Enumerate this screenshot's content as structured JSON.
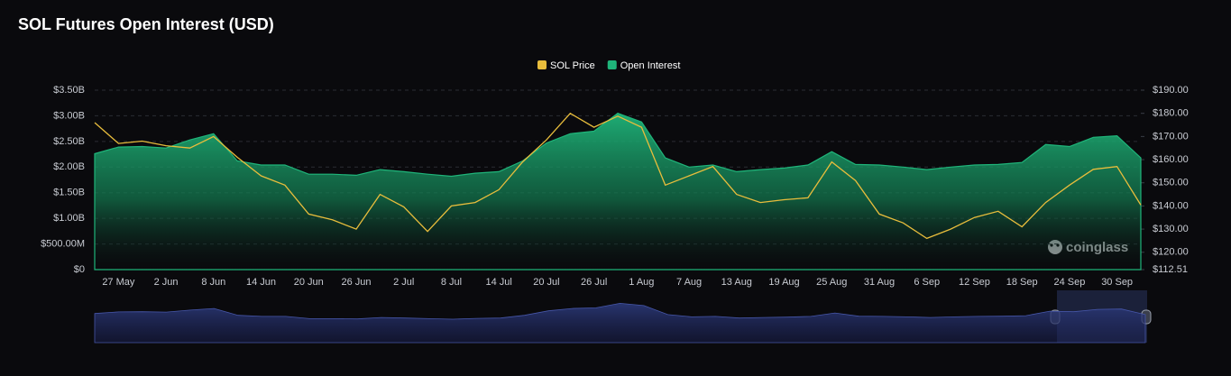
{
  "chart_data": {
    "type": "line",
    "title": "SOL Futures Open Interest (USD)",
    "watermark": "coinglass",
    "categories": [
      null,
      "27 May",
      null,
      "2 Jun",
      null,
      "8 Jun",
      null,
      "14 Jun",
      null,
      "20 Jun",
      null,
      "26 Jun",
      null,
      "2 Jul",
      null,
      "8 Jul",
      null,
      "14 Jul",
      null,
      "20 Jul",
      null,
      "26 Jul",
      null,
      "1 Aug",
      null,
      "7 Aug",
      null,
      "13 Aug",
      null,
      "19 Aug",
      null,
      "25 Aug",
      null,
      "31 Aug",
      null,
      "6 Sep",
      null,
      "12 Sep",
      null,
      "18 Sep",
      null,
      "24 Sep",
      null,
      "30 Sep",
      null
    ],
    "series": [
      {
        "name": "SOL Price",
        "color": "#e8bd3c",
        "axis": "y2",
        "values": [
          176,
          167,
          168,
          166,
          165,
          170,
          161,
          153,
          149,
          136.5,
          134,
          130,
          145,
          139.6,
          129,
          140,
          141.5,
          147,
          159,
          168.5,
          180,
          174,
          178.8,
          174,
          149,
          153,
          157,
          145,
          141.5,
          142.7,
          143.5,
          159,
          151,
          136.5,
          132.7,
          126,
          130,
          135,
          137.7,
          131,
          141.5,
          149,
          155.8,
          157,
          140.4
        ]
      },
      {
        "name": "Open Interest",
        "color": "#1fb57a",
        "values": [
          2260000000,
          2390000000,
          2400000000,
          2370000000,
          2530000000,
          2650000000,
          2120000000,
          2040000000,
          2040000000,
          1860000000,
          1860000000,
          1840000000,
          1950000000,
          1910000000,
          1860000000,
          1820000000,
          1880000000,
          1910000000,
          2120000000,
          2470000000,
          2650000000,
          2700000000,
          3050000000,
          2880000000,
          2180000000,
          2000000000,
          2040000000,
          1910000000,
          1950000000,
          1980000000,
          2040000000,
          2300000000,
          2050000000,
          2040000000,
          2000000000,
          1950000000,
          2000000000,
          2040000000,
          2050000000,
          2090000000,
          2440000000,
          2400000000,
          2580000000,
          2610000000,
          2180000000
        ]
      }
    ],
    "ylim": [
      0,
      3500000000
    ],
    "yticks": [
      {
        "value": 0,
        "label": "$0"
      },
      {
        "value": 500000000,
        "label": "$500.00M"
      },
      {
        "value": 1000000000,
        "label": "$1.00B"
      },
      {
        "value": 1500000000,
        "label": "$1.50B"
      },
      {
        "value": 2000000000,
        "label": "$2.00B"
      },
      {
        "value": 2500000000,
        "label": "$2.50B"
      },
      {
        "value": 3000000000,
        "label": "$3.00B"
      },
      {
        "value": 3500000000,
        "label": "$3.50B"
      }
    ],
    "y2lim": [
      112.51,
      190
    ],
    "y2ticks": [
      {
        "value": 112.51,
        "label": "$112.51"
      },
      {
        "value": 120,
        "label": "$120.00"
      },
      {
        "value": 130,
        "label": "$130.00"
      },
      {
        "value": 140,
        "label": "$140.00"
      },
      {
        "value": 150,
        "label": "$150.00"
      },
      {
        "value": 160,
        "label": "$160.00"
      },
      {
        "value": 170,
        "label": "$170.00"
      },
      {
        "value": 180,
        "label": "$180.00"
      },
      {
        "value": 190,
        "label": "$190.00"
      }
    ],
    "grid": true,
    "legend": "top"
  }
}
